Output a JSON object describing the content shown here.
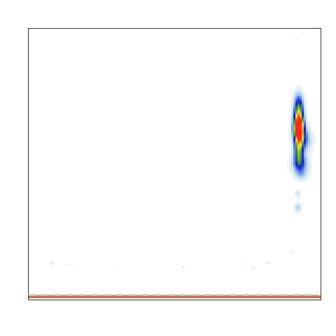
{
  "chart_data": {
    "type": "heatmap",
    "title": "",
    "xlabel": "",
    "ylabel": "",
    "xlim": [
      0,
      1
    ],
    "ylim": [
      0,
      1
    ],
    "grid": false,
    "legend": "none",
    "colormap": [
      "#ffffff",
      "#dbeaf7",
      "#9ecae1",
      "#4f6df5",
      "#1010e0",
      "#2f8f2f",
      "#7fc02a",
      "#ffe04a",
      "#ff8c1a",
      "#ff2a1a"
    ],
    "blobs": [
      {
        "x": 0.925,
        "y": 0.375,
        "sx": 0.012,
        "sy": 0.03,
        "value": 1.0
      },
      {
        "x": 0.925,
        "y": 0.33,
        "sx": 0.012,
        "sy": 0.04,
        "value": 0.7
      },
      {
        "x": 0.925,
        "y": 0.45,
        "sx": 0.011,
        "sy": 0.035,
        "value": 0.55
      },
      {
        "x": 0.93,
        "y": 0.5,
        "sx": 0.02,
        "sy": 0.025,
        "value": 0.35
      },
      {
        "x": 0.945,
        "y": 0.41,
        "sx": 0.018,
        "sy": 0.03,
        "value": 0.3
      },
      {
        "x": 0.925,
        "y": 0.27,
        "sx": 0.012,
        "sy": 0.03,
        "value": 0.25
      },
      {
        "x": 0.922,
        "y": 0.66,
        "sx": 0.008,
        "sy": 0.012,
        "value": 0.2
      },
      {
        "x": 0.922,
        "y": 0.61,
        "sx": 0.007,
        "sy": 0.01,
        "value": 0.15
      },
      {
        "x": 0.935,
        "y": 0.54,
        "sx": 0.015,
        "sy": 0.015,
        "value": 0.15
      },
      {
        "x": 0.917,
        "y": 0.035,
        "sx": 0.004,
        "sy": 0.004,
        "value": 0.08
      },
      {
        "x": 0.08,
        "y": 0.865,
        "sx": 0.006,
        "sy": 0.006,
        "value": 0.1
      },
      {
        "x": 0.53,
        "y": 0.88,
        "sx": 0.005,
        "sy": 0.005,
        "value": 0.08
      },
      {
        "x": 0.82,
        "y": 0.865,
        "sx": 0.005,
        "sy": 0.005,
        "value": 0.1
      },
      {
        "x": 0.905,
        "y": 0.825,
        "sx": 0.005,
        "sy": 0.008,
        "value": 0.07
      },
      {
        "x": 0.77,
        "y": 0.885,
        "sx": 0.005,
        "sy": 0.005,
        "value": 0.08
      },
      {
        "x": 0.14,
        "y": 0.875,
        "sx": 0.01,
        "sy": 0.004,
        "value": 0.06
      },
      {
        "x": 0.305,
        "y": 0.885,
        "sx": 0.005,
        "sy": 0.004,
        "value": 0.06
      },
      {
        "x": 0.475,
        "y": 0.38,
        "sx": 0.003,
        "sy": 0.003,
        "value": 0.05
      }
    ],
    "baseline": {
      "y": 0.99,
      "color": "#c8764a",
      "label": ""
    }
  }
}
